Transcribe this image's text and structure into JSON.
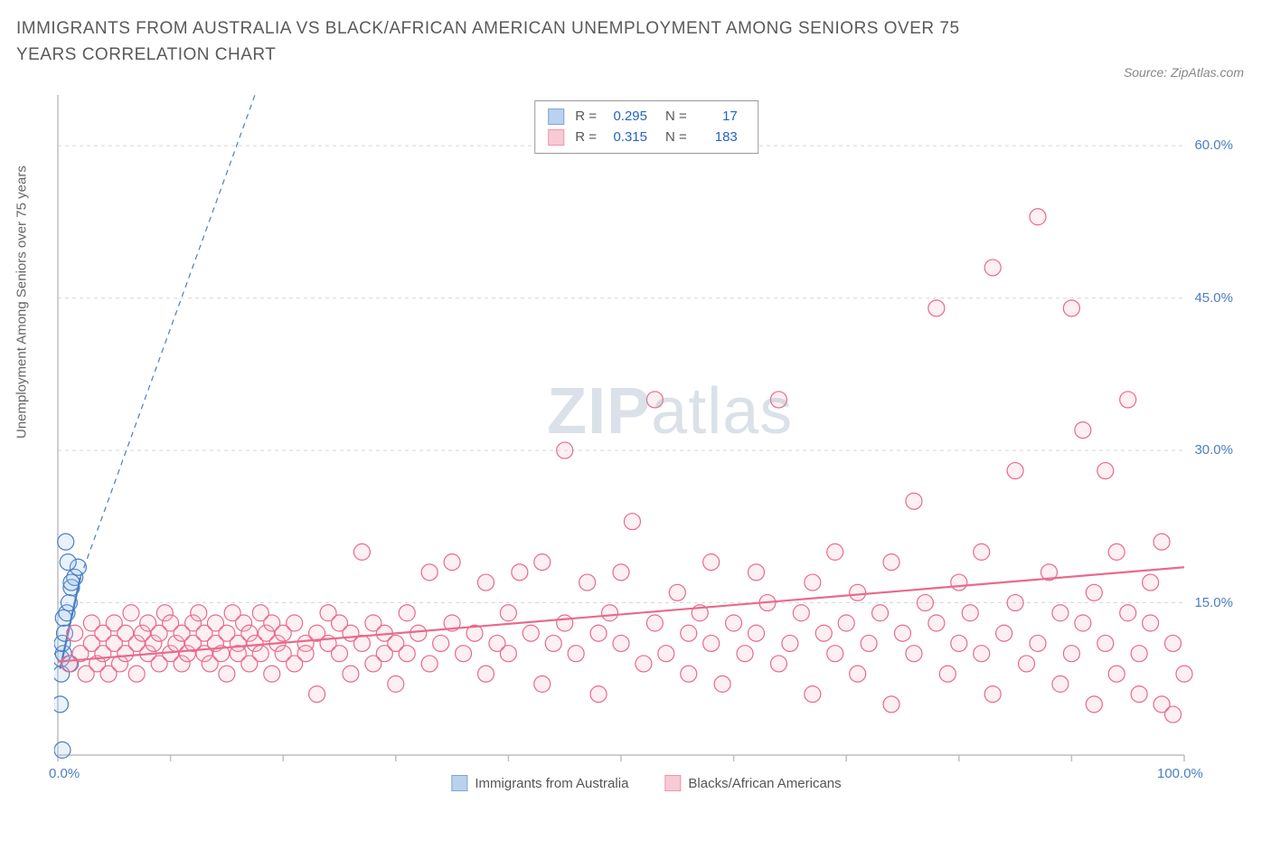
{
  "title": "IMMIGRANTS FROM AUSTRALIA VS BLACK/AFRICAN AMERICAN UNEMPLOYMENT AMONG SENIORS OVER 75 YEARS CORRELATION CHART",
  "source": "Source: ZipAtlas.com",
  "watermark_bold": "ZIP",
  "watermark_light": "atlas",
  "y_axis_label": "Unemployment Among Seniors over 75 years",
  "chart": {
    "type": "scatter",
    "background_color": "#ffffff",
    "grid_color": "#d8d8d8",
    "axis_color": "#bfbfbf",
    "tick_label_color": "#4a7fc4",
    "xlim": [
      0,
      100
    ],
    "ylim": [
      0,
      65
    ],
    "x_ticks": [
      0,
      10,
      20,
      30,
      40,
      50,
      60,
      70,
      80,
      90,
      100
    ],
    "y_ticks": [
      15,
      30,
      45,
      60
    ],
    "x_tick_labels_shown": {
      "0": "0.0%",
      "100": "100.0%"
    },
    "y_tick_labels_shown": {
      "15": "15.0%",
      "30": "30.0%",
      "45": "45.0%",
      "60": "60.0%"
    },
    "marker_radius": 9,
    "marker_stroke_width": 1.2,
    "marker_fill_opacity": 0.22,
    "series": [
      {
        "name": "Immigrants from Australia",
        "color_stroke": "#4a7fc4",
        "color_fill": "#9dbfe6",
        "R": "0.295",
        "N": "17",
        "trend_solid": {
          "x1": 0.2,
          "y1": 8.5,
          "x2": 2.0,
          "y2": 17.5
        },
        "trend_dashed": {
          "x1": 2.0,
          "y1": 17.5,
          "x2": 17.5,
          "y2": 65
        },
        "points": [
          [
            0.2,
            5.0
          ],
          [
            0.3,
            8.0
          ],
          [
            0.3,
            9.5
          ],
          [
            0.5,
            10.0
          ],
          [
            0.4,
            11.0
          ],
          [
            0.6,
            12.0
          ],
          [
            0.5,
            13.5
          ],
          [
            0.8,
            14.0
          ],
          [
            1.0,
            15.0
          ],
          [
            1.2,
            16.5
          ],
          [
            1.5,
            17.5
          ],
          [
            1.2,
            17.0
          ],
          [
            1.8,
            18.5
          ],
          [
            0.7,
            21.0
          ],
          [
            0.9,
            19.0
          ],
          [
            1.1,
            9.0
          ],
          [
            0.4,
            0.5
          ]
        ]
      },
      {
        "name": "Blacks/African Americans",
        "color_stroke": "#e86a8c",
        "color_fill": "#f4b4c6",
        "R": "0.315",
        "N": "183",
        "trend_solid": {
          "x1": 0,
          "y1": 9.2,
          "x2": 100,
          "y2": 18.5
        },
        "trend_dashed": null,
        "points": [
          [
            1,
            9
          ],
          [
            1.5,
            12
          ],
          [
            2,
            10
          ],
          [
            2.5,
            8
          ],
          [
            3,
            11
          ],
          [
            3,
            13
          ],
          [
            3.5,
            9
          ],
          [
            4,
            10
          ],
          [
            4,
            12
          ],
          [
            4.5,
            8
          ],
          [
            5,
            11
          ],
          [
            5,
            13
          ],
          [
            5.5,
            9
          ],
          [
            6,
            12
          ],
          [
            6,
            10
          ],
          [
            6.5,
            14
          ],
          [
            7,
            11
          ],
          [
            7,
            8
          ],
          [
            7.5,
            12
          ],
          [
            8,
            10
          ],
          [
            8,
            13
          ],
          [
            8.5,
            11
          ],
          [
            9,
            9
          ],
          [
            9,
            12
          ],
          [
            9.5,
            14
          ],
          [
            10,
            10
          ],
          [
            10,
            13
          ],
          [
            10.5,
            11
          ],
          [
            11,
            12
          ],
          [
            11,
            9
          ],
          [
            11.5,
            10
          ],
          [
            12,
            13
          ],
          [
            12,
            11
          ],
          [
            12.5,
            14
          ],
          [
            13,
            10
          ],
          [
            13,
            12
          ],
          [
            13.5,
            9
          ],
          [
            14,
            11
          ],
          [
            14,
            13
          ],
          [
            14.5,
            10
          ],
          [
            15,
            12
          ],
          [
            15,
            8
          ],
          [
            15.5,
            14
          ],
          [
            16,
            11
          ],
          [
            16,
            10
          ],
          [
            16.5,
            13
          ],
          [
            17,
            12
          ],
          [
            17,
            9
          ],
          [
            17.5,
            11
          ],
          [
            18,
            10
          ],
          [
            18,
            14
          ],
          [
            18.5,
            12
          ],
          [
            19,
            13
          ],
          [
            19,
            8
          ],
          [
            19.5,
            11
          ],
          [
            20,
            10
          ],
          [
            20,
            12
          ],
          [
            21,
            9
          ],
          [
            21,
            13
          ],
          [
            22,
            11
          ],
          [
            22,
            10
          ],
          [
            23,
            12
          ],
          [
            23,
            6
          ],
          [
            24,
            14
          ],
          [
            24,
            11
          ],
          [
            25,
            10
          ],
          [
            25,
            13
          ],
          [
            26,
            8
          ],
          [
            26,
            12
          ],
          [
            27,
            11
          ],
          [
            27,
            20
          ],
          [
            28,
            9
          ],
          [
            28,
            13
          ],
          [
            29,
            10
          ],
          [
            29,
            12
          ],
          [
            30,
            11
          ],
          [
            30,
            7
          ],
          [
            31,
            14
          ],
          [
            31,
            10
          ],
          [
            32,
            12
          ],
          [
            33,
            18
          ],
          [
            33,
            9
          ],
          [
            34,
            11
          ],
          [
            35,
            13
          ],
          [
            35,
            19
          ],
          [
            36,
            10
          ],
          [
            37,
            12
          ],
          [
            38,
            8
          ],
          [
            38,
            17
          ],
          [
            39,
            11
          ],
          [
            40,
            14
          ],
          [
            40,
            10
          ],
          [
            41,
            18
          ],
          [
            42,
            12
          ],
          [
            43,
            7
          ],
          [
            43,
            19
          ],
          [
            44,
            11
          ],
          [
            45,
            13
          ],
          [
            45,
            30
          ],
          [
            46,
            10
          ],
          [
            47,
            17
          ],
          [
            48,
            12
          ],
          [
            48,
            6
          ],
          [
            49,
            14
          ],
          [
            50,
            18
          ],
          [
            50,
            11
          ],
          [
            51,
            23
          ],
          [
            52,
            9
          ],
          [
            53,
            13
          ],
          [
            53,
            35
          ],
          [
            54,
            10
          ],
          [
            55,
            16
          ],
          [
            56,
            12
          ],
          [
            56,
            8
          ],
          [
            57,
            14
          ],
          [
            58,
            11
          ],
          [
            58,
            19
          ],
          [
            59,
            7
          ],
          [
            60,
            13
          ],
          [
            61,
            10
          ],
          [
            62,
            18
          ],
          [
            62,
            12
          ],
          [
            63,
            15
          ],
          [
            64,
            9
          ],
          [
            64,
            35
          ],
          [
            65,
            11
          ],
          [
            66,
            14
          ],
          [
            67,
            17
          ],
          [
            67,
            6
          ],
          [
            68,
            12
          ],
          [
            69,
            10
          ],
          [
            69,
            20
          ],
          [
            70,
            13
          ],
          [
            71,
            8
          ],
          [
            71,
            16
          ],
          [
            72,
            11
          ],
          [
            73,
            14
          ],
          [
            74,
            19
          ],
          [
            74,
            5
          ],
          [
            75,
            12
          ],
          [
            76,
            10
          ],
          [
            76,
            25
          ],
          [
            77,
            15
          ],
          [
            78,
            13
          ],
          [
            78,
            44
          ],
          [
            79,
            8
          ],
          [
            80,
            11
          ],
          [
            80,
            17
          ],
          [
            81,
            14
          ],
          [
            82,
            10
          ],
          [
            82,
            20
          ],
          [
            83,
            6
          ],
          [
            83,
            48
          ],
          [
            84,
            12
          ],
          [
            85,
            15
          ],
          [
            85,
            28
          ],
          [
            86,
            9
          ],
          [
            87,
            11
          ],
          [
            87,
            53
          ],
          [
            88,
            18
          ],
          [
            89,
            14
          ],
          [
            89,
            7
          ],
          [
            90,
            10
          ],
          [
            90,
            44
          ],
          [
            91,
            13
          ],
          [
            91,
            32
          ],
          [
            92,
            16
          ],
          [
            92,
            5
          ],
          [
            93,
            11
          ],
          [
            93,
            28
          ],
          [
            94,
            8
          ],
          [
            94,
            20
          ],
          [
            95,
            14
          ],
          [
            95,
            35
          ],
          [
            96,
            10
          ],
          [
            96,
            6
          ],
          [
            97,
            13
          ],
          [
            97,
            17
          ],
          [
            98,
            5
          ],
          [
            98,
            21
          ],
          [
            99,
            11
          ],
          [
            99,
            4
          ],
          [
            100,
            8
          ]
        ]
      }
    ]
  },
  "legend_bottom": [
    {
      "label": "Immigrants from Australia",
      "stroke": "#4a7fc4",
      "fill": "#9dbfe6"
    },
    {
      "label": "Blacks/African Americans",
      "stroke": "#e86a8c",
      "fill": "#f4b4c6"
    }
  ]
}
